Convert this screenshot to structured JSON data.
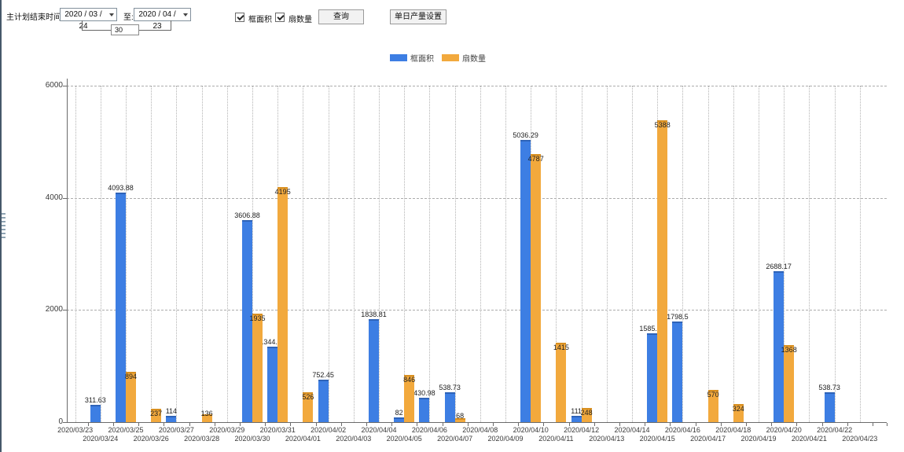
{
  "toolbar": {
    "plan_end_label": "主计划结束时间:",
    "date_start": "2020 / 03 / 24",
    "to_label": "至:",
    "date_end": "2020 / 04 / 23",
    "span_days": "30",
    "checkbox_frame_area_label": "框面积",
    "checkbox_frame_area_checked": true,
    "checkbox_sash_count_label": "扇数量",
    "checkbox_sash_count_checked": true,
    "query_button_label": "查询",
    "daily_output_button_label": "单日产量设置"
  },
  "legend": {
    "items": [
      {
        "label": "框面积",
        "color": "#3D7EE3"
      },
      {
        "label": "扇数量",
        "color": "#F2A93D"
      }
    ]
  },
  "chart_data": {
    "type": "bar",
    "title": "",
    "xlabel": "",
    "ylabel": "",
    "ylim": [
      0,
      6000
    ],
    "yticks": [
      0,
      2000,
      4000,
      6000
    ],
    "grid": {
      "horizontal": "dashed",
      "vertical": "dotted"
    },
    "legend_position": "top",
    "categories": [
      "2020/03/23",
      "2020/03/24",
      "2020/03/25",
      "2020/03/26",
      "2020/03/27",
      "2020/03/28",
      "2020/03/29",
      "2020/03/30",
      "2020/03/31",
      "2020/04/01",
      "2020/04/02",
      "2020/04/03",
      "2020/04/04",
      "2020/04/05",
      "2020/04/06",
      "2020/04/07",
      "2020/04/08",
      "2020/04/09",
      "2020/04/10",
      "2020/04/11",
      "2020/04/12",
      "2020/04/13",
      "2020/04/14",
      "2020/04/15",
      "2020/04/16",
      "2020/04/17",
      "2020/04/18",
      "2020/04/19",
      "2020/04/20",
      "2020/04/21",
      "2020/04/22",
      "2020/04/23"
    ],
    "series": [
      {
        "name": "框面积",
        "color": "#3D7EE3",
        "values": [
          null,
          311.63,
          4093.88,
          null,
          114,
          null,
          null,
          3606.88,
          1344.95,
          null,
          752.45,
          null,
          1838.81,
          82,
          430.98,
          538.73,
          null,
          null,
          5036.29,
          null,
          111,
          null,
          null,
          1585.96,
          1798.5,
          null,
          null,
          null,
          2688.17,
          null,
          538.73,
          null
        ]
      },
      {
        "name": "扇数量",
        "color": "#F2A93D",
        "values": [
          null,
          null,
          894,
          237,
          null,
          136,
          null,
          1935,
          4195,
          526,
          null,
          null,
          null,
          846,
          null,
          68,
          null,
          null,
          4787,
          1415,
          248,
          null,
          null,
          5388,
          null,
          570,
          324,
          null,
          1368,
          null,
          null,
          null
        ]
      }
    ]
  }
}
